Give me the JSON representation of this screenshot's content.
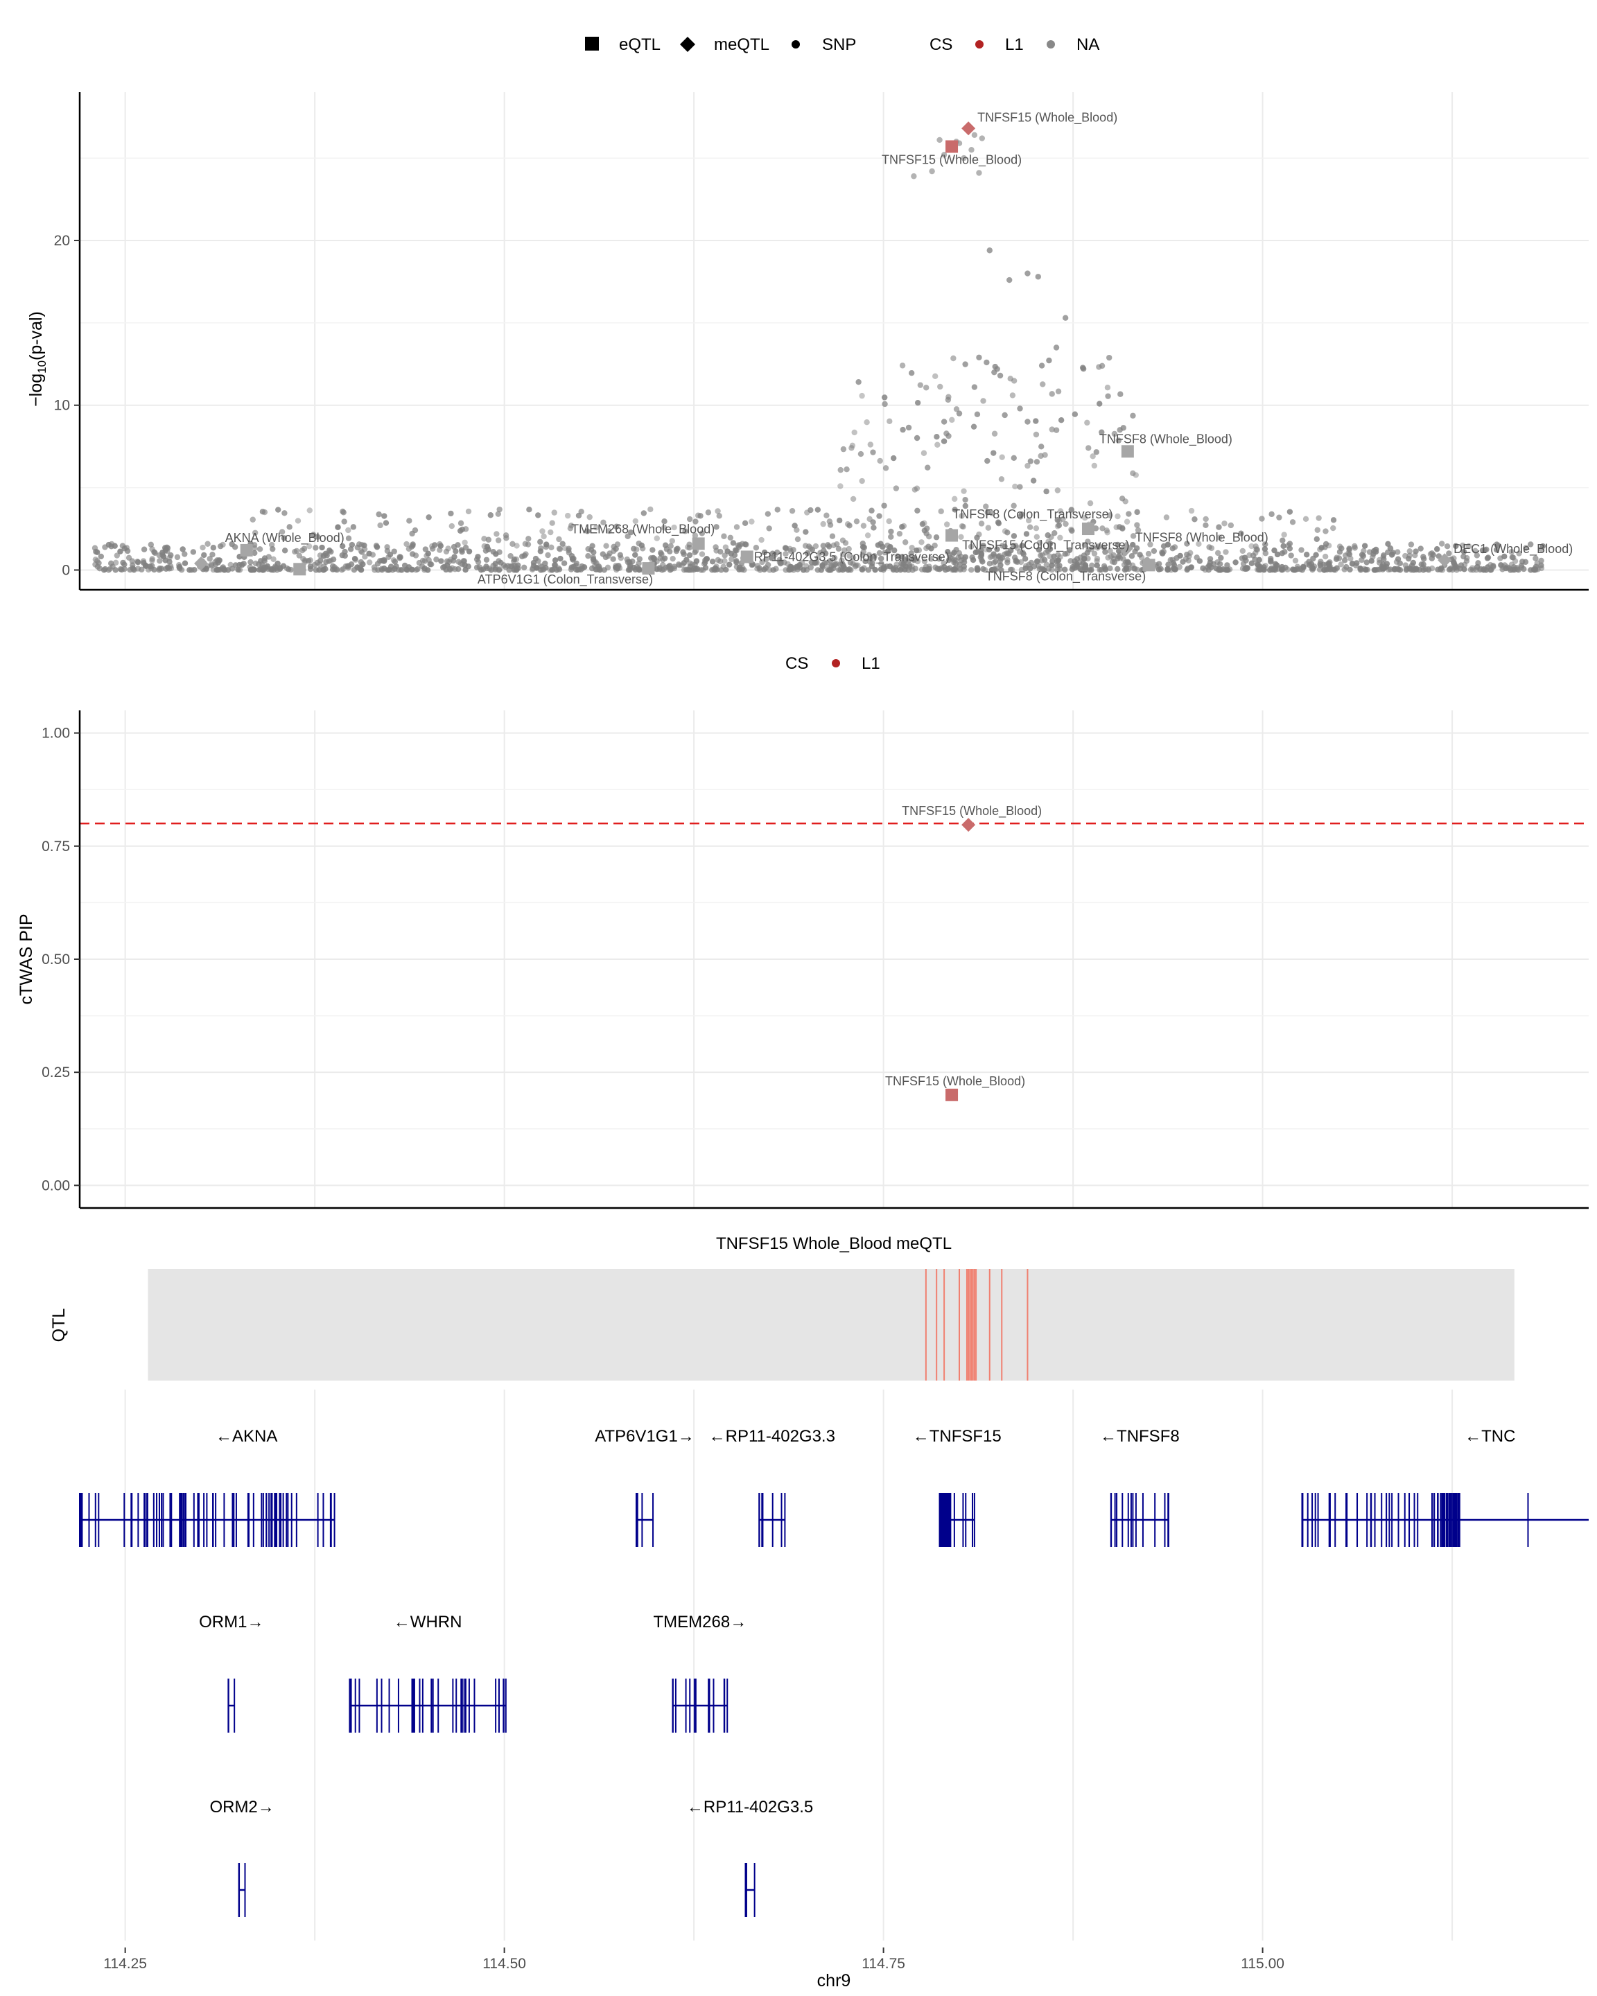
{
  "legend_top": {
    "shape_title": "",
    "shapes": [
      {
        "name": "eQTL",
        "shape": "square"
      },
      {
        "name": "meQTL",
        "shape": "diamond"
      },
      {
        "name": "SNP",
        "shape": "circle"
      }
    ],
    "cs_title": "CS",
    "cs_items": [
      {
        "name": "L1",
        "color": "#b22222"
      },
      {
        "name": "NA",
        "color": "#888888"
      }
    ]
  },
  "legend_mid": {
    "cs_title": "CS",
    "cs_items": [
      {
        "name": "L1",
        "color": "#b22222"
      }
    ]
  },
  "colors": {
    "cs_L1": "#c96b6b",
    "cs_NA": "#a6a6a6",
    "snp": "#808080",
    "threshold": "#e01e1e",
    "gene": "#00008b",
    "qtl_band": "#e5e5e5",
    "qtl_line": "#f08070"
  },
  "chart_data": [
    {
      "type": "scatter",
      "name": "locus-pval",
      "ylabel_prefix": "−log",
      "ylabel_sub": "10",
      "ylabel_suffix": "(p-val)",
      "xlim": [
        114.22,
        115.215
      ],
      "ylim": [
        -1.2,
        29
      ],
      "yticks": [
        0,
        10,
        20
      ],
      "xgrid": [
        114.25,
        114.375,
        114.5,
        114.625,
        114.75,
        114.875,
        115.0,
        115.125
      ],
      "ygrid_minor": [
        5,
        15,
        25
      ],
      "qtls": [
        {
          "gene": "TNFSF15",
          "tissue": "Whole_Blood",
          "type": "meQTL",
          "x": 114.806,
          "y": 26.8,
          "cs": "L1",
          "label": "TNFSF15 (Whole_Blood)",
          "label_pos": "right-above"
        },
        {
          "gene": "TNFSF15",
          "tissue": "Whole_Blood",
          "type": "eQTL",
          "x": 114.795,
          "y": 25.7,
          "cs": "L1",
          "label": "TNFSF15 (Whole_Blood)",
          "label_pos": "below"
        },
        {
          "gene": "TNFSF8",
          "tissue": "Whole_Blood",
          "type": "eQTL",
          "x": 114.911,
          "y": 7.2,
          "cs": "NA",
          "label": "TNFSF8 (Whole_Blood)",
          "label_pos": "above"
        },
        {
          "gene": "TNFSF8",
          "tissue": "Colon_Transverse",
          "type": "eQTL",
          "x": 114.885,
          "y": 2.5,
          "cs": "NA",
          "label": "TNFSF8 (Colon_Transverse)",
          "label_pos": "above-left"
        },
        {
          "gene": "TNFSF15",
          "tissue": "Colon_Transverse",
          "type": "eQTL",
          "x": 114.795,
          "y": 2.1,
          "cs": "NA",
          "label": "TNFSF15 (Colon_Transverse)",
          "label_pos": "right-below"
        },
        {
          "gene": "TNFSF8",
          "tissue": "Whole_Blood",
          "type": "meQTL",
          "x": 114.91,
          "y": 1.3,
          "cs": "NA",
          "label": "TNFSF8 (Whole_Blood)",
          "label_pos": "right-above"
        },
        {
          "gene": "TNFSF8",
          "tissue": "Colon_Transverse",
          "type": "eQTL",
          "x": 114.925,
          "y": 0.3,
          "cs": "NA",
          "label": "TNFSF8 (Colon_Transverse)",
          "label_pos": "below-left"
        },
        {
          "gene": "DEC1",
          "tissue": "Whole_Blood",
          "type": "meQTL",
          "x": 115.12,
          "y": 0.6,
          "cs": "NA",
          "label": "DEC1 (Whole_Blood)",
          "label_pos": "right-above"
        },
        {
          "gene": "AKNA",
          "tissue": "Whole_Blood",
          "type": "eQTL",
          "x": 114.33,
          "y": 1.2,
          "cs": "NA",
          "label": "AKNA (Whole_Blood)",
          "label_pos": "above"
        },
        {
          "gene": "AKNA",
          "tissue": "Whole_Blood",
          "type": "meQTL",
          "x": 114.3,
          "y": 0.4,
          "cs": "NA",
          "label": "",
          "label_pos": "none"
        },
        {
          "gene": "AKNA",
          "tissue": "Whole_Blood",
          "type": "eQTL",
          "x": 114.365,
          "y": 0.05,
          "cs": "NA",
          "label": "",
          "label_pos": "none"
        },
        {
          "gene": "ATP6V1G1",
          "tissue": "Colon_Transverse",
          "type": "eQTL",
          "x": 114.595,
          "y": 0.1,
          "cs": "NA",
          "label": "ATP6V1G1 (Colon_Transverse)",
          "label_pos": "below-left"
        },
        {
          "gene": "TMEM268",
          "tissue": "Whole_Blood",
          "type": "eQTL",
          "x": 114.628,
          "y": 1.6,
          "cs": "NA",
          "label": "TMEM268 (Whole_Blood)",
          "label_pos": "above-left"
        },
        {
          "gene": "RP11-402G3.5",
          "tissue": "Colon_Transverse",
          "type": "eQTL",
          "x": 114.66,
          "y": 0.8,
          "cs": "NA",
          "label": "RP11-402G3.5 (Colon_Transverse)",
          "label_pos": "right"
        }
      ]
    },
    {
      "type": "scatter",
      "name": "ctwas-pip",
      "ylabel": "cTWAS PIP",
      "xlim": [
        114.22,
        115.215
      ],
      "ylim": [
        -0.05,
        1.05
      ],
      "yticks": [
        0.0,
        0.25,
        0.5,
        0.75,
        1.0
      ],
      "ytick_labels": [
        "0.00",
        "0.25",
        "0.50",
        "0.75",
        "1.00"
      ],
      "threshold": 0.8,
      "points": [
        {
          "gene": "TNFSF15",
          "tissue": "Whole_Blood",
          "type": "meQTL",
          "x": 114.806,
          "y": 0.797,
          "cs": "L1",
          "label": "TNFSF15 (Whole_Blood)"
        },
        {
          "gene": "TNFSF15",
          "tissue": "Whole_Blood",
          "type": "eQTL",
          "x": 114.795,
          "y": 0.2,
          "cs": "L1",
          "label": "TNFSF15 (Whole_Blood)"
        }
      ]
    },
    {
      "type": "track",
      "name": "qtl-track",
      "title": "TNFSF15 Whole_Blood meQTL",
      "ylabel": "QTL",
      "band": [
        114.265,
        115.166
      ],
      "positions": [
        114.778,
        114.785,
        114.79,
        114.8,
        114.805,
        114.806,
        114.807,
        114.808,
        114.809,
        114.81,
        114.811,
        114.82,
        114.828,
        114.845
      ]
    },
    {
      "type": "genes",
      "name": "gene-track",
      "xlabel": "chr9",
      "xticks": [
        114.25,
        114.5,
        114.75,
        115.0
      ],
      "xtick_labels": [
        "114.25",
        "114.50",
        "114.75",
        "115.00"
      ],
      "genes": [
        {
          "name": "AKNA",
          "strand": "-",
          "row": 0,
          "start": 114.22,
          "end": 114.388,
          "label": "←AKNA"
        },
        {
          "name": "ATP6V1G1",
          "strand": "+",
          "row": 0,
          "start": 114.587,
          "end": 114.598,
          "label": "ATP6V1G1→"
        },
        {
          "name": "RP11-402G3.3",
          "strand": "-",
          "row": 0,
          "start": 114.668,
          "end": 114.685,
          "label": "←RP11-402G3.3"
        },
        {
          "name": "TNFSF15",
          "strand": "-",
          "row": 0,
          "start": 114.787,
          "end": 114.81,
          "label": "←TNFSF15"
        },
        {
          "name": "TNFSF8",
          "strand": "-",
          "row": 0,
          "start": 114.9,
          "end": 114.938,
          "label": "←TNFSF8"
        },
        {
          "name": "TNC",
          "strand": "-",
          "row": 0,
          "start": 115.026,
          "end": 115.215,
          "label": "←TNC"
        },
        {
          "name": "ORM1",
          "strand": "+",
          "row": 1,
          "start": 114.318,
          "end": 114.322,
          "label": "ORM1→"
        },
        {
          "name": "WHRN",
          "strand": "-",
          "row": 1,
          "start": 114.398,
          "end": 114.501,
          "label": "←WHRN"
        },
        {
          "name": "TMEM268",
          "strand": "+",
          "row": 1,
          "start": 114.611,
          "end": 114.647,
          "label": "TMEM268→"
        },
        {
          "name": "ORM2",
          "strand": "+",
          "row": 2,
          "start": 114.325,
          "end": 114.329,
          "label": "ORM2→"
        },
        {
          "name": "RP11-402G3.5",
          "strand": "-",
          "row": 2,
          "start": 114.659,
          "end": 114.665,
          "label": "←RP11-402G3.5"
        }
      ]
    }
  ]
}
